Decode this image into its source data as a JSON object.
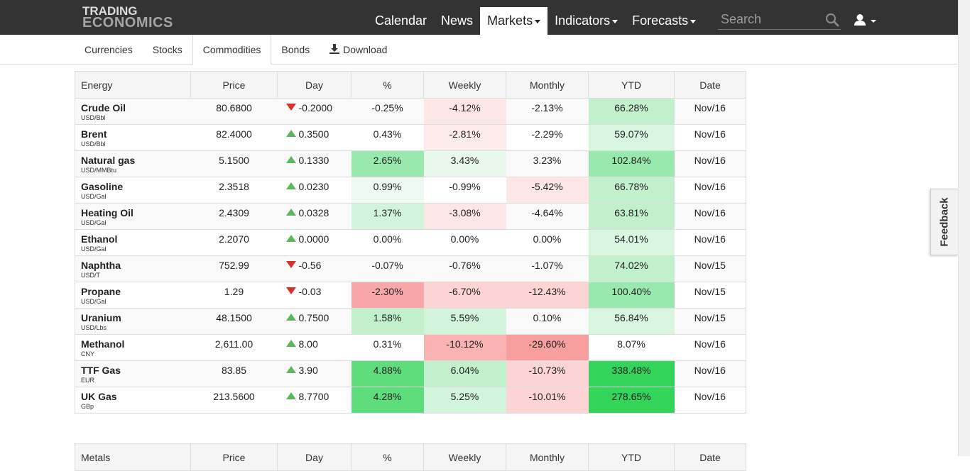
{
  "brand": {
    "line1": "TRADING",
    "line2": "ECONOMICS"
  },
  "nav": {
    "items": [
      {
        "label": "Calendar",
        "caret": false,
        "active": false
      },
      {
        "label": "News",
        "caret": false,
        "active": false
      },
      {
        "label": "Markets",
        "caret": true,
        "active": true
      },
      {
        "label": "Indicators",
        "caret": true,
        "active": false
      },
      {
        "label": "Forecasts",
        "caret": true,
        "active": false
      }
    ],
    "search_placeholder": "Search",
    "search_icon": "search-icon",
    "user_icon": "user-icon"
  },
  "subnav": {
    "tabs": [
      {
        "label": "Currencies",
        "active": false
      },
      {
        "label": "Stocks",
        "active": false
      },
      {
        "label": "Commodities",
        "active": true
      },
      {
        "label": "Bonds",
        "active": false
      }
    ],
    "download_label": "Download"
  },
  "table": {
    "headers": [
      "Energy",
      "Price",
      "Day",
      "%",
      "Weekly",
      "Monthly",
      "YTD",
      "Date"
    ],
    "rows": [
      {
        "name": "Crude Oil",
        "unit": "USD/Bbl",
        "price": "80.6800",
        "day": "-0.2000",
        "dir": "down",
        "pct": "-0.25%",
        "weekly": "-4.12%",
        "monthly": "-2.13%",
        "ytd": "66.28%",
        "date": "Nov/16"
      },
      {
        "name": "Brent",
        "unit": "USD/Bbl",
        "price": "82.4000",
        "day": "0.3500",
        "dir": "up",
        "pct": "0.43%",
        "weekly": "-2.81%",
        "monthly": "-2.29%",
        "ytd": "59.07%",
        "date": "Nov/16"
      },
      {
        "name": "Natural gas",
        "unit": "USD/MMBtu",
        "price": "5.1500",
        "day": "0.1330",
        "dir": "up",
        "pct": "2.65%",
        "weekly": "3.43%",
        "monthly": "3.23%",
        "ytd": "102.84%",
        "date": "Nov/16"
      },
      {
        "name": "Gasoline",
        "unit": "USD/Gal",
        "price": "2.3518",
        "day": "0.0230",
        "dir": "up",
        "pct": "0.99%",
        "weekly": "-0.99%",
        "monthly": "-5.42%",
        "ytd": "66.78%",
        "date": "Nov/16"
      },
      {
        "name": "Heating Oil",
        "unit": "USD/Gal",
        "price": "2.4309",
        "day": "0.0328",
        "dir": "up",
        "pct": "1.37%",
        "weekly": "-3.08%",
        "monthly": "-4.64%",
        "ytd": "63.81%",
        "date": "Nov/16"
      },
      {
        "name": "Ethanol",
        "unit": "USD/Gal",
        "price": "2.2070",
        "day": "0.0000",
        "dir": "up",
        "pct": "0.00%",
        "weekly": "0.00%",
        "monthly": "0.00%",
        "ytd": "54.01%",
        "date": "Nov/16"
      },
      {
        "name": "Naphtha",
        "unit": "USD/T",
        "price": "752.99",
        "day": "-0.56",
        "dir": "down",
        "pct": "-0.07%",
        "weekly": "-0.76%",
        "monthly": "-1.07%",
        "ytd": "74.02%",
        "date": "Nov/15"
      },
      {
        "name": "Propane",
        "unit": "USD/Gal",
        "price": "1.29",
        "day": "-0.03",
        "dir": "down",
        "pct": "-2.30%",
        "weekly": "-6.70%",
        "monthly": "-12.43%",
        "ytd": "100.40%",
        "date": "Nov/15"
      },
      {
        "name": "Uranium",
        "unit": "USD/Lbs",
        "price": "48.1500",
        "day": "0.7500",
        "dir": "up",
        "pct": "1.58%",
        "weekly": "5.59%",
        "monthly": "0.10%",
        "ytd": "56.84%",
        "date": "Nov/15"
      },
      {
        "name": "Methanol",
        "unit": "CNY",
        "price": "2,611.00",
        "day": "8.00",
        "dir": "up",
        "pct": "0.31%",
        "weekly": "-10.12%",
        "monthly": "-29.60%",
        "ytd": "8.07%",
        "date": "Nov/16"
      },
      {
        "name": "TTF Gas",
        "unit": "EUR",
        "price": "83.85",
        "day": "3.90",
        "dir": "up",
        "pct": "4.88%",
        "weekly": "6.04%",
        "monthly": "-10.73%",
        "ytd": "338.48%",
        "date": "Nov/16"
      },
      {
        "name": "UK Gas",
        "unit": "GBp",
        "price": "213.5600",
        "day": "8.7700",
        "dir": "up",
        "pct": "4.28%",
        "weekly": "5.25%",
        "monthly": "-10.01%",
        "ytd": "278.65%",
        "date": "Nov/16"
      }
    ]
  },
  "table2": {
    "headers": [
      "Metals",
      "Price",
      "Day",
      "%",
      "Weekly",
      "Monthly",
      "YTD",
      "Date"
    ]
  },
  "feedback": {
    "label": "Feedback"
  },
  "colors": {
    "nav_bg": "#333333",
    "up_arrow": "#5cb85c",
    "down_arrow": "#d9302b"
  }
}
